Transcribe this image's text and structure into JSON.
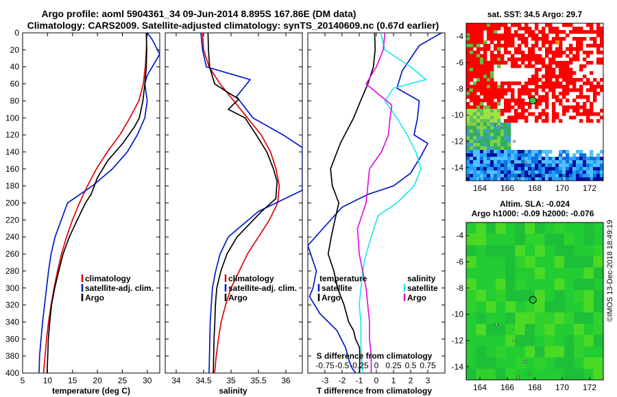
{
  "header": {
    "title_line1": "Argo profile: aoml 5904361_34 09-Jun-2014 8.895S 167.86E (DM data)",
    "title_line2": "Climatology: CARS2009. Satellite-adjusted climatology: synTS_20140609.nc (0.67d earlier)"
  },
  "credit": "©IMOS 13-Dec-2018 18:49:19",
  "colors": {
    "climatology": "#e00000",
    "satellite": "#0018c8",
    "argo": "#000000",
    "sat_diff_s": "#22e6f0",
    "clim_diff_s": "#e010e0"
  },
  "chart_data": [
    {
      "type": "line",
      "id": "temperature",
      "xlabel": "temperature (deg C)",
      "ylabel": "",
      "xlim": [
        5,
        32.5
      ],
      "ylim": [
        400,
        0
      ],
      "xticks": [
        5,
        10,
        15,
        20,
        25,
        30
      ],
      "yticks": [
        0,
        20,
        40,
        60,
        80,
        100,
        120,
        140,
        160,
        180,
        200,
        220,
        240,
        260,
        280,
        300,
        320,
        340,
        360,
        380,
        400
      ],
      "legend": [
        "climatology",
        "satellite-adj. clim.",
        "Argo"
      ],
      "series": [
        {
          "name": "climatology",
          "color": "#e00000",
          "x": [
            29.9,
            29.8,
            29.6,
            29.2,
            28.3,
            26.5,
            24.5,
            22,
            19.8,
            18,
            16.4,
            15,
            13.8,
            12.8,
            12,
            11.3,
            10.7,
            10.2,
            9.8,
            9.5,
            9.2
          ],
          "y": [
            0,
            20,
            40,
            60,
            80,
            100,
            120,
            140,
            160,
            180,
            200,
            220,
            240,
            260,
            280,
            300,
            320,
            340,
            360,
            380,
            400
          ]
        },
        {
          "name": "satellite-adj. clim.",
          "color": "#0018c8",
          "x": [
            30,
            31,
            32.5,
            30,
            29.5,
            30,
            29.5,
            28,
            26,
            23,
            19,
            14,
            11.5,
            10.7,
            10.2,
            9.8,
            9.4,
            9,
            8.7,
            8.4,
            8.3
          ],
          "y": [
            0,
            8,
            25,
            50,
            60,
            80,
            100,
            120,
            140,
            160,
            180,
            200,
            240,
            260,
            280,
            300,
            320,
            340,
            360,
            380,
            400
          ]
        },
        {
          "name": "Argo",
          "color": "#000000",
          "x": [
            29.8,
            29.8,
            29.7,
            29.5,
            29.2,
            28.5,
            27.5,
            25,
            22,
            20,
            18.8,
            17.7,
            16,
            14.3,
            13,
            12.2,
            11.5,
            10.9,
            10.5,
            10.1,
            9.8
          ],
          "y": [
            0,
            20,
            40,
            60,
            80,
            100,
            110,
            130,
            150,
            170,
            190,
            200,
            220,
            240,
            260,
            280,
            300,
            320,
            340,
            360,
            400
          ]
        }
      ]
    },
    {
      "type": "line",
      "id": "salinity",
      "xlabel": "salinity",
      "xlim": [
        33.8,
        36.3
      ],
      "ylim": [
        400,
        0
      ],
      "xticks": [
        34,
        34.5,
        35,
        35.5,
        36
      ],
      "legend": [
        "climatology",
        "satellite-adj. clim.",
        "Argo"
      ],
      "series": [
        {
          "name": "climatology",
          "color": "#e00000",
          "x": [
            34.48,
            34.5,
            34.6,
            34.8,
            35.05,
            35.3,
            35.55,
            35.72,
            35.82,
            35.88,
            35.85,
            35.7,
            35.5,
            35.3,
            35.15,
            35.0,
            34.9,
            34.82,
            34.77,
            34.73,
            34.7
          ],
          "y": [
            0,
            20,
            40,
            60,
            80,
            100,
            120,
            140,
            160,
            180,
            200,
            220,
            240,
            260,
            280,
            300,
            320,
            340,
            360,
            380,
            400
          ]
        },
        {
          "name": "satellite-adj. clim.",
          "color": "#0018c8",
          "x": [
            34.45,
            34.48,
            34.55,
            35.35,
            35.1,
            35.4,
            35.95,
            36.3,
            36.3,
            35.5,
            34.95,
            34.8,
            34.72,
            34.66,
            34.62,
            34.6
          ],
          "y": [
            0,
            20,
            40,
            55,
            75,
            100,
            120,
            135,
            185,
            210,
            240,
            260,
            280,
            300,
            340,
            400
          ]
        },
        {
          "name": "Argo",
          "color": "#000000",
          "x": [
            34.58,
            34.58,
            34.6,
            34.7,
            34.95,
            35.15,
            34.95,
            35.25,
            35.45,
            35.65,
            35.78,
            35.85,
            35.82,
            35.55,
            35.1,
            34.92,
            34.82,
            34.75,
            34.72,
            34.7,
            34.68,
            34.67
          ],
          "y": [
            0,
            20,
            40,
            60,
            70,
            78,
            90,
            100,
            120,
            140,
            160,
            175,
            195,
            210,
            240,
            260,
            280,
            300,
            320,
            340,
            360,
            400
          ]
        }
      ]
    },
    {
      "type": "line",
      "id": "difference",
      "xlabel": "T difference from climatology",
      "top_xlabel": "S difference from climatology",
      "xlim": [
        -4,
        4
      ],
      "ylim": [
        400,
        0
      ],
      "xticks": [
        -3,
        -2,
        -1,
        0,
        1,
        2,
        3
      ],
      "top_xticks": [
        -0.75,
        -0.5,
        -0.25,
        0,
        0.25,
        0.5,
        0.75
      ],
      "top_xtick_labels": [
        "-0.75",
        "-0.5",
        "-0.25",
        "0",
        "0.25",
        "0.5",
        "0.75"
      ],
      "legend_temperature_title": "temperature",
      "legend_salinity_title": "salinity",
      "legend_items": [
        "satellite",
        "Argo",
        "satellite",
        "Argo"
      ],
      "series": [
        {
          "name": "T satellite",
          "color": "#0018c8",
          "x": [
            3.8,
            2.5,
            1.5,
            1.2,
            2.5,
            2.4,
            2.2,
            3.0,
            2.6,
            2.0,
            1.0,
            -0.5,
            -2.0,
            -4.0,
            -3.5,
            -3.6,
            -3.7,
            -3.9,
            -3.3,
            -2.3,
            -1.8,
            -1.6,
            -1.4,
            -1.2
          ],
          "y": [
            0,
            15,
            45,
            65,
            80,
            100,
            120,
            130,
            145,
            165,
            180,
            190,
            205,
            250,
            280,
            290,
            300,
            310,
            330,
            350,
            370,
            385,
            395,
            400
          ]
        },
        {
          "name": "T Argo",
          "color": "#000000",
          "x": [
            -0.1,
            -0.1,
            -0.2,
            -0.5,
            -0.9,
            -1.3,
            -2.1,
            -2.7,
            -2.6,
            -2.2,
            -2.4,
            -2.6,
            -2.8,
            -2.5,
            -2.3,
            -1.9,
            -1.6,
            -1.3,
            -1.2,
            -1.0,
            -1.0,
            -1.0
          ],
          "y": [
            0,
            20,
            40,
            60,
            80,
            100,
            130,
            160,
            180,
            200,
            220,
            240,
            260,
            280,
            300,
            320,
            340,
            350,
            360,
            370,
            380,
            400
          ]
        },
        {
          "name": "S satellite",
          "color": "#22e6f0",
          "x": [
            0.25,
            0.5,
            2.0,
            2.9,
            1.0,
            0.5,
            1.2,
            1.8,
            2.3,
            2.6,
            2.2,
            1.2,
            0.1,
            -0.3,
            -0.6,
            -0.8,
            -0.9,
            -1.0,
            -0.9,
            -0.9,
            -0.8
          ],
          "y": [
            0,
            20,
            40,
            55,
            65,
            80,
            100,
            120,
            140,
            160,
            180,
            200,
            215,
            240,
            260,
            280,
            300,
            320,
            340,
            370,
            400
          ]
        },
        {
          "name": "S climatology",
          "color": "#e010e0",
          "x": [
            0.5,
            0.4,
            0.0,
            -0.6,
            0.3,
            0.9,
            0.8,
            0.7,
            0.3,
            -0.4,
            -0.5,
            -0.6,
            -1.1,
            -1.0,
            -0.8,
            -0.6,
            -0.5,
            -0.4,
            -0.4,
            -0.3,
            -0.3
          ],
          "y": [
            0,
            20,
            40,
            60,
            75,
            85,
            100,
            120,
            140,
            160,
            180,
            200,
            230,
            260,
            280,
            300,
            320,
            340,
            360,
            380,
            400
          ]
        }
      ]
    },
    {
      "type": "heatmap",
      "id": "sst_map",
      "title": "sat. SST: 34.5 Argo: 29.7",
      "xlim": [
        163,
        173
      ],
      "ylim": [
        -15,
        -3
      ],
      "xticks": [
        164,
        166,
        168,
        170,
        172
      ],
      "yticks": [
        -4,
        -6,
        -8,
        -10,
        -12,
        -14
      ],
      "argo_position": [
        167.86,
        -8.895
      ]
    },
    {
      "type": "heatmap",
      "id": "sla_map",
      "title": "Altim. SLA: -0.024",
      "subtitle": "Argo h1000: -0.09 h2000: -0.076",
      "xlim": [
        163,
        173
      ],
      "ylim": [
        -15,
        -3
      ],
      "xticks": [
        164,
        166,
        168,
        170,
        172
      ],
      "yticks": [
        -4,
        -6,
        -8,
        -10,
        -12,
        -14
      ],
      "argo_position": [
        167.86,
        -8.895
      ]
    }
  ]
}
